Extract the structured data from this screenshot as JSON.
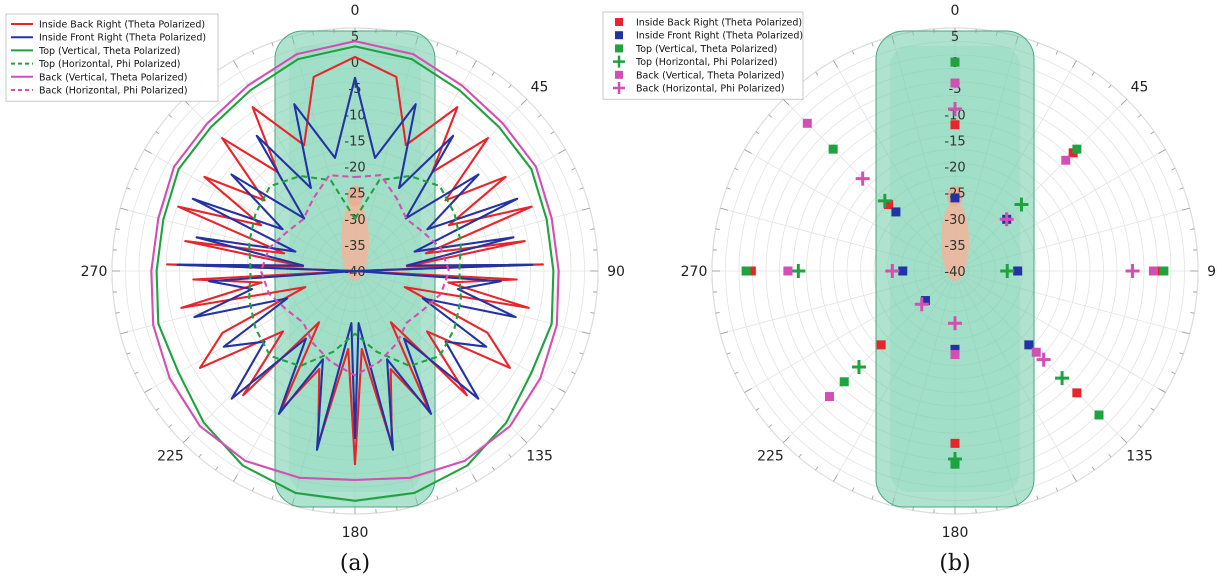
{
  "chart_data": [
    {
      "type": "line",
      "projection": "polar",
      "caption": "(a)",
      "angle_labels": [
        "0",
        "45",
        "90",
        "135",
        "180",
        "225",
        "270"
      ],
      "radial_tick_labels": [
        "5",
        "0",
        "-5",
        "-10",
        "-15",
        "-20",
        "-25",
        "-30",
        "-35",
        "-40"
      ],
      "rlim": [
        -40,
        5
      ],
      "grid": true,
      "legend_position": "top-left",
      "series": [
        {
          "name": "Inside Back Right (Theta Polarized)",
          "color": "#e8252b",
          "style": "solid",
          "marker": "none",
          "theta": [
            0,
            12,
            22,
            32,
            38,
            45,
            52,
            58,
            64,
            70,
            76,
            80,
            85,
            88,
            90,
            93,
            97,
            102,
            108,
            115,
            122,
            130,
            138,
            145,
            152,
            160,
            168,
            175,
            180
          ],
          "r": [
            1,
            -2,
            -14,
            -3,
            -16,
            -4,
            -18,
            -6,
            -20,
            -4,
            -26,
            -7,
            -30,
            -4,
            -40,
            -9,
            -22,
            -6,
            -30,
            -12,
            -5,
            -22,
            -8,
            -28,
            -10,
            -20,
            -6,
            -25,
            -3
          ]
        },
        {
          "name": "Inside Front Right (Theta Polarized)",
          "color": "#2433a3",
          "style": "solid",
          "marker": "none",
          "theta": [
            0,
            10,
            20,
            28,
            36,
            44,
            52,
            60,
            66,
            72,
            78,
            84,
            88,
            90,
            94,
            100,
            106,
            112,
            120,
            128,
            136,
            144,
            152,
            160,
            168,
            176,
            180
          ],
          "r": [
            -3,
            -18,
            -6,
            -22,
            -8,
            -26,
            -10,
            -24,
            -6,
            -28,
            -9,
            -30,
            -6,
            -40,
            -12,
            -20,
            -8,
            -26,
            -11,
            -18,
            -6,
            -24,
            -9,
            -22,
            -5,
            -30,
            -8
          ]
        },
        {
          "name": "Top (Vertical, Theta Polarized)",
          "color": "#1fa33f",
          "style": "solid",
          "marker": "none",
          "theta": [
            0,
            15,
            30,
            45,
            60,
            75,
            90,
            105,
            120,
            135,
            150,
            165,
            180
          ],
          "r": [
            3,
            2,
            0,
            -1,
            -1,
            -2,
            -2,
            -1,
            -1,
            1,
            3,
            4,
            4
          ]
        },
        {
          "name": "Top (Horizontal, Phi Polarized)",
          "color": "#1fa33f",
          "style": "dashed",
          "marker": "none",
          "theta": [
            0,
            15,
            30,
            45,
            60,
            75,
            90,
            105,
            120,
            135,
            150,
            165,
            180
          ],
          "r": [
            -30,
            -22,
            -19,
            -17,
            -18,
            -19,
            -20,
            -19,
            -18,
            -17,
            -19,
            -24,
            -28
          ]
        },
        {
          "name": "Back (Vertical, Theta Polarized)",
          "color": "#d44fb3",
          "style": "solid",
          "marker": "none",
          "theta": [
            0,
            15,
            30,
            45,
            60,
            75,
            90,
            105,
            120,
            135,
            150,
            165,
            180
          ],
          "r": [
            4,
            3,
            1,
            0,
            0,
            -1,
            -1,
            0,
            1,
            2,
            2,
            1,
            0
          ]
        },
        {
          "name": "Back (Horizontal, Phi Polarized)",
          "color": "#d44fb3",
          "style": "dashed",
          "marker": "none",
          "theta": [
            0,
            15,
            30,
            45,
            60,
            75,
            90,
            105,
            120,
            135,
            150,
            165,
            180
          ],
          "r": [
            -22,
            -21,
            -24,
            -26,
            -25,
            -23,
            -22,
            -23,
            -25,
            -26,
            -24,
            -22,
            -20
          ]
        }
      ]
    },
    {
      "type": "scatter",
      "projection": "polar",
      "caption": "(b)",
      "angle_labels": [
        "0",
        "45",
        "90",
        "135",
        "180",
        "225",
        "270"
      ],
      "radial_tick_labels": [
        "5",
        "0",
        "-5",
        "-10",
        "-15",
        "-20",
        "-25",
        "-30",
        "-35",
        "-40"
      ],
      "rlim": [
        -40,
        5
      ],
      "grid": true,
      "legend_position": "top-left",
      "series": [
        {
          "name": "Inside Back Right (Theta Polarized)",
          "color": "#e8252b",
          "marker": "square",
          "theta": [
            0,
            45,
            90,
            135,
            180,
            225,
            270,
            315
          ],
          "r": [
            -12,
            -8,
            -1,
            -7,
            -7,
            -20,
            -1,
            -22
          ]
        },
        {
          "name": "Inside Front Right (Theta Polarized)",
          "color": "#2433a3",
          "marker": "square",
          "theta": [
            0,
            45,
            90,
            135,
            180,
            225,
            270,
            315
          ],
          "r": [
            -26,
            -26,
            -28,
            -20,
            -25,
            -32,
            -30,
            -24
          ]
        },
        {
          "name": "Top (Vertical, Theta Polarized)",
          "color": "#1fa33f",
          "marker": "square",
          "theta": [
            0,
            45,
            90,
            135,
            180,
            225,
            270,
            315
          ],
          "r": [
            0,
            -7,
            0,
            -1,
            -3,
            -10,
            0,
            -7
          ]
        },
        {
          "name": "Top (Horizontal, Phi Polarized)",
          "color": "#1fa33f",
          "marker": "plus",
          "theta": [
            0,
            45,
            90,
            135,
            180,
            225,
            270,
            315
          ],
          "r": [
            -9,
            -22,
            -30,
            -11,
            -4,
            -14,
            -10,
            -21
          ]
        },
        {
          "name": "Back (Vertical, Theta Polarized)",
          "color": "#d44fb3",
          "marker": "square",
          "theta": [
            0,
            45,
            90,
            135,
            180,
            225,
            270,
            315
          ],
          "r": [
            -4,
            -10,
            -2,
            -18,
            -24,
            -6,
            -8,
            0
          ]
        },
        {
          "name": "Back (Horizontal, Phi Polarized)",
          "color": "#d44fb3",
          "marker": "plus",
          "theta": [
            0,
            45,
            90,
            135,
            180,
            225,
            270,
            315
          ],
          "r": [
            -9,
            -26,
            -6,
            -16,
            -30,
            -31,
            -28,
            -15
          ]
        }
      ]
    }
  ]
}
